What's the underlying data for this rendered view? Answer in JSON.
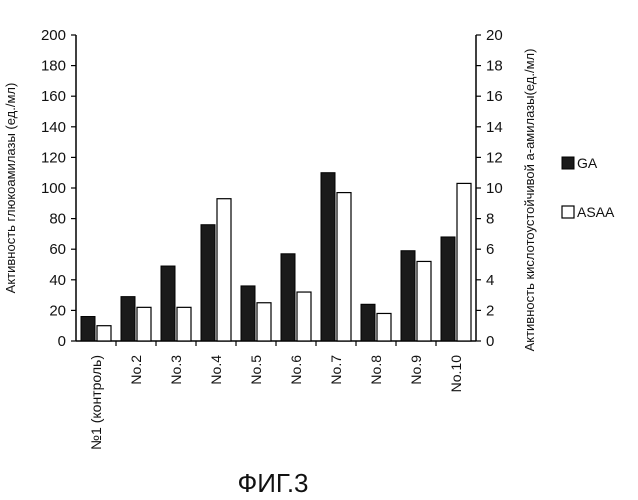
{
  "chart_data": {
    "type": "bar",
    "title": "",
    "categories": [
      "№1 (контроль)",
      "No.2",
      "No.3",
      "No.4",
      "No.5",
      "No.6",
      "No.7",
      "No.8",
      "No.9",
      "No.10"
    ],
    "series": [
      {
        "name": "GA",
        "axis": "left",
        "color": "#1a1a1a",
        "values": [
          16,
          29,
          49,
          76,
          36,
          57,
          110,
          24,
          59,
          68
        ]
      },
      {
        "name": "ASAA",
        "axis": "right",
        "color": "#ffffff",
        "values": [
          1.0,
          2.2,
          2.2,
          9.3,
          2.5,
          3.2,
          9.7,
          1.8,
          5.2,
          10.3
        ]
      }
    ],
    "ylabel": "Активность глюкоамилазы (ед./мл)",
    "y2label": "Активность кислотоустойчивой а-амилазы(ед./мл)",
    "ylim": [
      0,
      200
    ],
    "y2lim": [
      0,
      20
    ],
    "yticks": [
      "0",
      "20",
      "40",
      "60",
      "80",
      "100",
      "120",
      "140",
      "160",
      "180",
      "200"
    ],
    "y2ticks": [
      "0",
      "2",
      "4",
      "6",
      "8",
      "10",
      "12",
      "14",
      "16",
      "18",
      "20"
    ],
    "legend_position": "right",
    "grid": false
  },
  "figure_caption": "ФИГ.3"
}
